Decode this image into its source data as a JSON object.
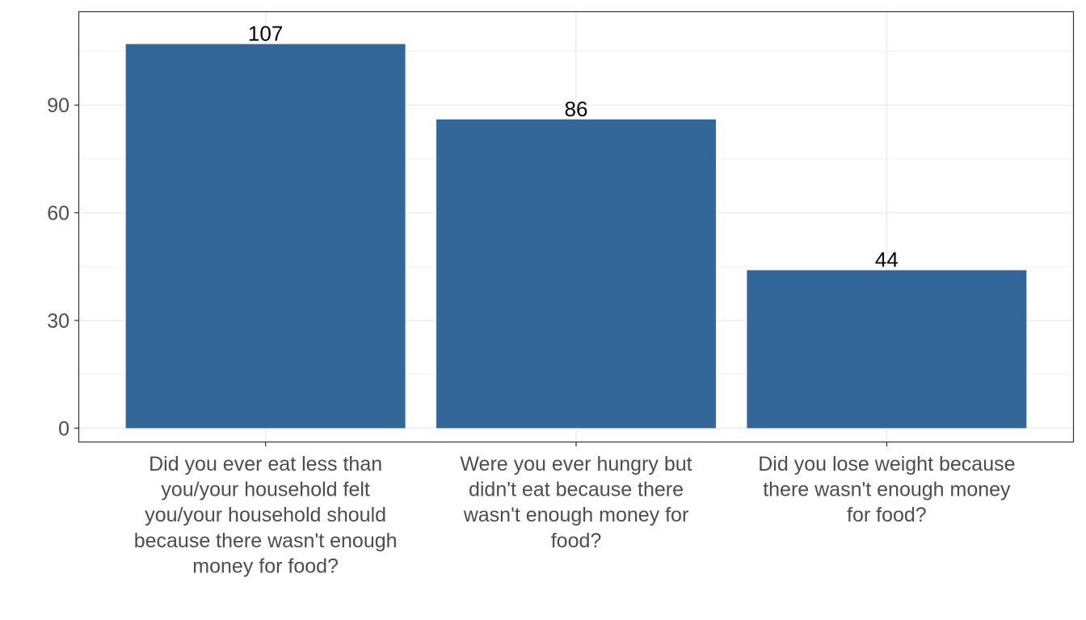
{
  "chart_data": {
    "type": "bar",
    "title": "",
    "xlabel": "",
    "ylabel": "",
    "categories": [
      "Did you ever eat less than you/your household felt you/your household should because there wasn't enough money for food?",
      "Were you ever hungry but didn't eat because there wasn't enough money for food?",
      "Did you lose weight because there wasn't enough money for food?"
    ],
    "category_lines": [
      [
        "Did you ever eat less than",
        "you/your household felt",
        "you/your household should",
        "because there wasn't enough",
        "money for food?"
      ],
      [
        "Were you ever hungry but",
        "didn't eat because there",
        "wasn't enough money for",
        "food?"
      ],
      [
        "Did you lose weight because",
        "there wasn't enough money",
        "for food?"
      ]
    ],
    "values": [
      107,
      86,
      44
    ],
    "data_labels": [
      "107",
      "86",
      "44"
    ],
    "ylim": [
      -3.75,
      115.9
    ],
    "yticks": [
      0,
      30,
      60,
      90
    ],
    "ytick_labels": [
      "0",
      "30",
      "60",
      "90"
    ],
    "grid": true,
    "legend": "none",
    "bar_color": "#336699"
  }
}
